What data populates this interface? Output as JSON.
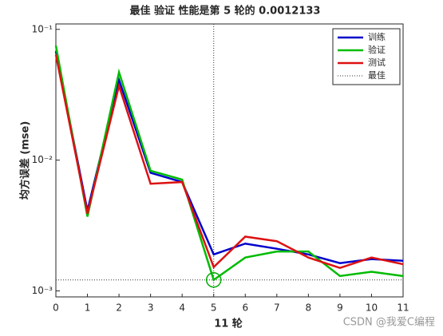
{
  "chart_data": {
    "type": "line",
    "title": "最佳 验证 性能是第 5 轮的 0.0012133",
    "xlabel": "11 轮",
    "ylabel": "均方误差 (mse)",
    "x": [
      0,
      1,
      2,
      3,
      4,
      5,
      6,
      7,
      8,
      9,
      10,
      11
    ],
    "series": [
      {
        "name": "训练",
        "color": "#0000cc",
        "values": [
          0.068,
          0.0041,
          0.041,
          0.008,
          0.0068,
          0.0019,
          0.0023,
          0.0021,
          0.0019,
          0.00163,
          0.00175,
          0.0017
        ]
      },
      {
        "name": "验证",
        "color": "#00bb00",
        "values": [
          0.075,
          0.0037,
          0.047,
          0.0083,
          0.0071,
          0.0012133,
          0.0018,
          0.002,
          0.002,
          0.0013,
          0.0014,
          0.0013
        ]
      },
      {
        "name": "测试",
        "color": "#dd1111",
        "values": [
          0.064,
          0.0039,
          0.037,
          0.0066,
          0.0068,
          0.00152,
          0.0026,
          0.0024,
          0.0018,
          0.0015,
          0.0018,
          0.0016
        ]
      }
    ],
    "best": {
      "name": "最佳",
      "x": 5,
      "y": 0.0012133
    },
    "xlim": [
      0,
      11
    ],
    "xticks": [
      0,
      1,
      2,
      3,
      4,
      5,
      6,
      7,
      8,
      9,
      10,
      11
    ],
    "ylim": [
      0.0009,
      0.11
    ],
    "log_y": true,
    "yticks": [
      {
        "value": 0.001,
        "label": "10⁻³"
      },
      {
        "value": 0.01,
        "label": "10⁻²"
      },
      {
        "value": 0.1,
        "label": "10⁻¹"
      }
    ],
    "legend": "upper right",
    "watermark": "CSDN @我爱C编程"
  }
}
